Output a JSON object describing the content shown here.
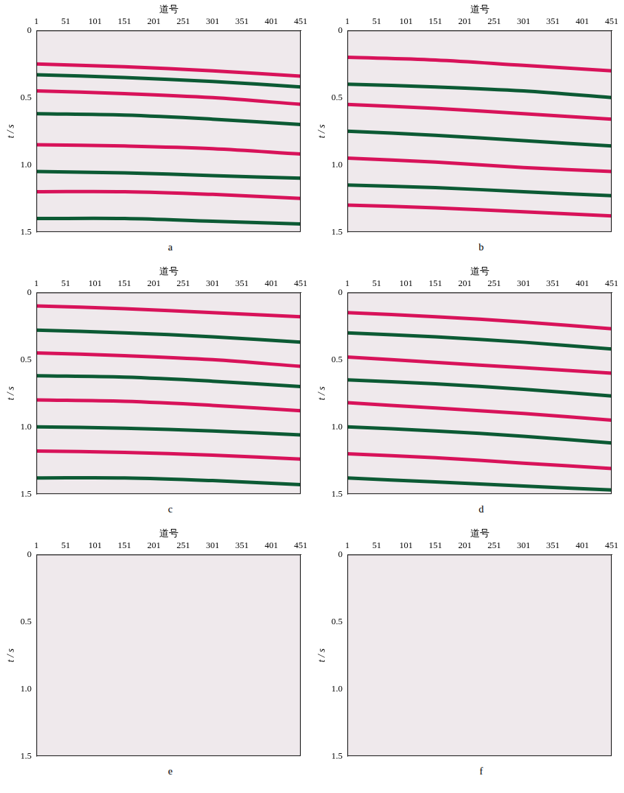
{
  "chart_data": [
    {
      "type": "line",
      "title": "a",
      "x_label": "道号",
      "y_label": "t / s",
      "grid": false,
      "xlim": [
        1,
        451
      ],
      "xticks": [
        1,
        51,
        101,
        151,
        201,
        251,
        301,
        351,
        401,
        451
      ],
      "ylim": [
        0,
        1.5
      ],
      "yticks": [
        0,
        0.5,
        {
          "value": 1,
          "label": "1.0"
        },
        1.5
      ],
      "series": [
        {
          "color": "#d8135a",
          "x": [
            1,
            151,
            301,
            451
          ],
          "values": [
            0.25,
            0.27,
            0.3,
            0.34
          ]
        },
        {
          "color": "#0c5a34",
          "x": [
            1,
            151,
            301,
            451
          ],
          "values": [
            0.33,
            0.35,
            0.38,
            0.42
          ]
        },
        {
          "color": "#d8135a",
          "x": [
            1,
            151,
            301,
            451
          ],
          "values": [
            0.45,
            0.47,
            0.5,
            0.55
          ]
        },
        {
          "color": "#0c5a34",
          "x": [
            1,
            151,
            301,
            451
          ],
          "values": [
            0.62,
            0.63,
            0.66,
            0.7
          ]
        },
        {
          "color": "#d8135a",
          "x": [
            1,
            151,
            301,
            451
          ],
          "values": [
            0.85,
            0.86,
            0.88,
            0.92
          ]
        },
        {
          "color": "#0c5a34",
          "x": [
            1,
            151,
            301,
            451
          ],
          "values": [
            1.05,
            1.06,
            1.08,
            1.1
          ]
        },
        {
          "color": "#d8135a",
          "x": [
            1,
            151,
            301,
            451
          ],
          "values": [
            1.2,
            1.2,
            1.22,
            1.25
          ]
        },
        {
          "color": "#0c5a34",
          "x": [
            1,
            151,
            301,
            451
          ],
          "values": [
            1.4,
            1.4,
            1.42,
            1.44
          ]
        }
      ]
    },
    {
      "type": "line",
      "title": "b",
      "x_label": "道号",
      "y_label": "t / s",
      "grid": false,
      "xlim": [
        1,
        451
      ],
      "xticks": [
        1,
        51,
        101,
        151,
        201,
        251,
        301,
        351,
        401,
        451
      ],
      "ylim": [
        0,
        1.5
      ],
      "yticks": [
        0,
        0.5,
        {
          "value": 1,
          "label": "1.0"
        },
        1.5
      ],
      "series": [
        {
          "color": "#d8135a",
          "x": [
            1,
            151,
            301,
            451
          ],
          "values": [
            0.2,
            0.22,
            0.26,
            0.3
          ]
        },
        {
          "color": "#0c5a34",
          "x": [
            1,
            151,
            301,
            451
          ],
          "values": [
            0.4,
            0.42,
            0.45,
            0.5
          ]
        },
        {
          "color": "#d8135a",
          "x": [
            1,
            151,
            301,
            451
          ],
          "values": [
            0.55,
            0.58,
            0.62,
            0.66
          ]
        },
        {
          "color": "#0c5a34",
          "x": [
            1,
            151,
            301,
            451
          ],
          "values": [
            0.75,
            0.78,
            0.82,
            0.86
          ]
        },
        {
          "color": "#d8135a",
          "x": [
            1,
            151,
            301,
            451
          ],
          "values": [
            0.95,
            0.98,
            1.02,
            1.05
          ]
        },
        {
          "color": "#0c5a34",
          "x": [
            1,
            151,
            301,
            451
          ],
          "values": [
            1.15,
            1.17,
            1.2,
            1.23
          ]
        },
        {
          "color": "#d8135a",
          "x": [
            1,
            151,
            301,
            451
          ],
          "values": [
            1.3,
            1.32,
            1.35,
            1.38
          ]
        }
      ]
    },
    {
      "type": "line",
      "title": "c",
      "x_label": "道号",
      "y_label": "t / s",
      "grid": false,
      "xlim": [
        1,
        451
      ],
      "xticks": [
        1,
        51,
        101,
        151,
        201,
        251,
        301,
        351,
        401,
        451
      ],
      "ylim": [
        0,
        1.5
      ],
      "yticks": [
        0,
        0.5,
        {
          "value": 1,
          "label": "1.0"
        },
        1.5
      ],
      "series": [
        {
          "color": "#d8135a",
          "x": [
            1,
            151,
            301,
            451
          ],
          "values": [
            0.1,
            0.12,
            0.15,
            0.18
          ]
        },
        {
          "color": "#0c5a34",
          "x": [
            1,
            151,
            301,
            451
          ],
          "values": [
            0.28,
            0.3,
            0.33,
            0.37
          ]
        },
        {
          "color": "#d8135a",
          "x": [
            1,
            151,
            301,
            451
          ],
          "values": [
            0.45,
            0.47,
            0.5,
            0.55
          ]
        },
        {
          "color": "#0c5a34",
          "x": [
            1,
            151,
            301,
            451
          ],
          "values": [
            0.62,
            0.63,
            0.66,
            0.7
          ]
        },
        {
          "color": "#d8135a",
          "x": [
            1,
            151,
            301,
            451
          ],
          "values": [
            0.8,
            0.81,
            0.84,
            0.88
          ]
        },
        {
          "color": "#0c5a34",
          "x": [
            1,
            151,
            301,
            451
          ],
          "values": [
            1.0,
            1.01,
            1.03,
            1.06
          ]
        },
        {
          "color": "#d8135a",
          "x": [
            1,
            151,
            301,
            451
          ],
          "values": [
            1.18,
            1.19,
            1.21,
            1.24
          ]
        },
        {
          "color": "#0c5a34",
          "x": [
            1,
            151,
            301,
            451
          ],
          "values": [
            1.38,
            1.38,
            1.4,
            1.43
          ]
        }
      ]
    },
    {
      "type": "line",
      "title": "d",
      "x_label": "道号",
      "y_label": "t / s",
      "grid": false,
      "xlim": [
        1,
        451
      ],
      "xticks": [
        1,
        51,
        101,
        151,
        201,
        251,
        301,
        351,
        401,
        451
      ],
      "ylim": [
        0,
        1.5
      ],
      "yticks": [
        0,
        0.5,
        {
          "value": 1,
          "label": "1.0"
        },
        1.5
      ],
      "series": [
        {
          "color": "#d8135a",
          "x": [
            1,
            151,
            301,
            451
          ],
          "values": [
            0.15,
            0.18,
            0.22,
            0.27
          ]
        },
        {
          "color": "#0c5a34",
          "x": [
            1,
            151,
            301,
            451
          ],
          "values": [
            0.3,
            0.33,
            0.37,
            0.42
          ]
        },
        {
          "color": "#d8135a",
          "x": [
            1,
            151,
            301,
            451
          ],
          "values": [
            0.48,
            0.52,
            0.56,
            0.6
          ]
        },
        {
          "color": "#0c5a34",
          "x": [
            1,
            151,
            301,
            451
          ],
          "values": [
            0.65,
            0.68,
            0.72,
            0.77
          ]
        },
        {
          "color": "#d8135a",
          "x": [
            1,
            151,
            301,
            451
          ],
          "values": [
            0.82,
            0.86,
            0.9,
            0.95
          ]
        },
        {
          "color": "#0c5a34",
          "x": [
            1,
            151,
            301,
            451
          ],
          "values": [
            1.0,
            1.03,
            1.07,
            1.12
          ]
        },
        {
          "color": "#d8135a",
          "x": [
            1,
            151,
            301,
            451
          ],
          "values": [
            1.2,
            1.23,
            1.27,
            1.31
          ]
        },
        {
          "color": "#0c5a34",
          "x": [
            1,
            151,
            301,
            451
          ],
          "values": [
            1.38,
            1.41,
            1.44,
            1.47
          ]
        }
      ]
    },
    {
      "type": "line",
      "title": "e",
      "x_label": "道号",
      "y_label": "t / s",
      "grid": false,
      "xlim": [
        1,
        451
      ],
      "xticks": [
        1,
        51,
        101,
        151,
        201,
        251,
        301,
        351,
        401,
        451
      ],
      "ylim": [
        0,
        1.5
      ],
      "yticks": [
        0,
        0.5,
        {
          "value": 1,
          "label": "1.0"
        },
        1.5
      ],
      "series": []
    },
    {
      "type": "line",
      "title": "f",
      "x_label": "道号",
      "y_label": "t / s",
      "grid": false,
      "xlim": [
        1,
        451
      ],
      "xticks": [
        1,
        51,
        101,
        151,
        201,
        251,
        301,
        351,
        401,
        451
      ],
      "ylim": [
        0,
        1.5
      ],
      "yticks": [
        0,
        0.5,
        {
          "value": 1,
          "label": "1.0"
        },
        1.5
      ],
      "series": []
    }
  ]
}
